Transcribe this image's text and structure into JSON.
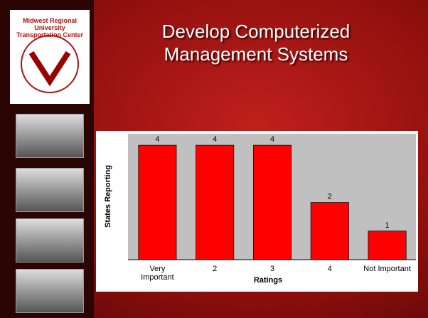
{
  "logo": {
    "text": "Midwest Regional University Transportation Center"
  },
  "chart_data": {
    "type": "bar",
    "title": "Develop Computerized Management Systems",
    "categories": [
      "Very Important",
      "2",
      "3",
      "4",
      "Not Important"
    ],
    "values": [
      4,
      4,
      4,
      2,
      1
    ],
    "color": "#ff0000",
    "x_label": "Ratings",
    "y_label": "States Reporting",
    "ylim": [
      0,
      4.4
    ]
  }
}
